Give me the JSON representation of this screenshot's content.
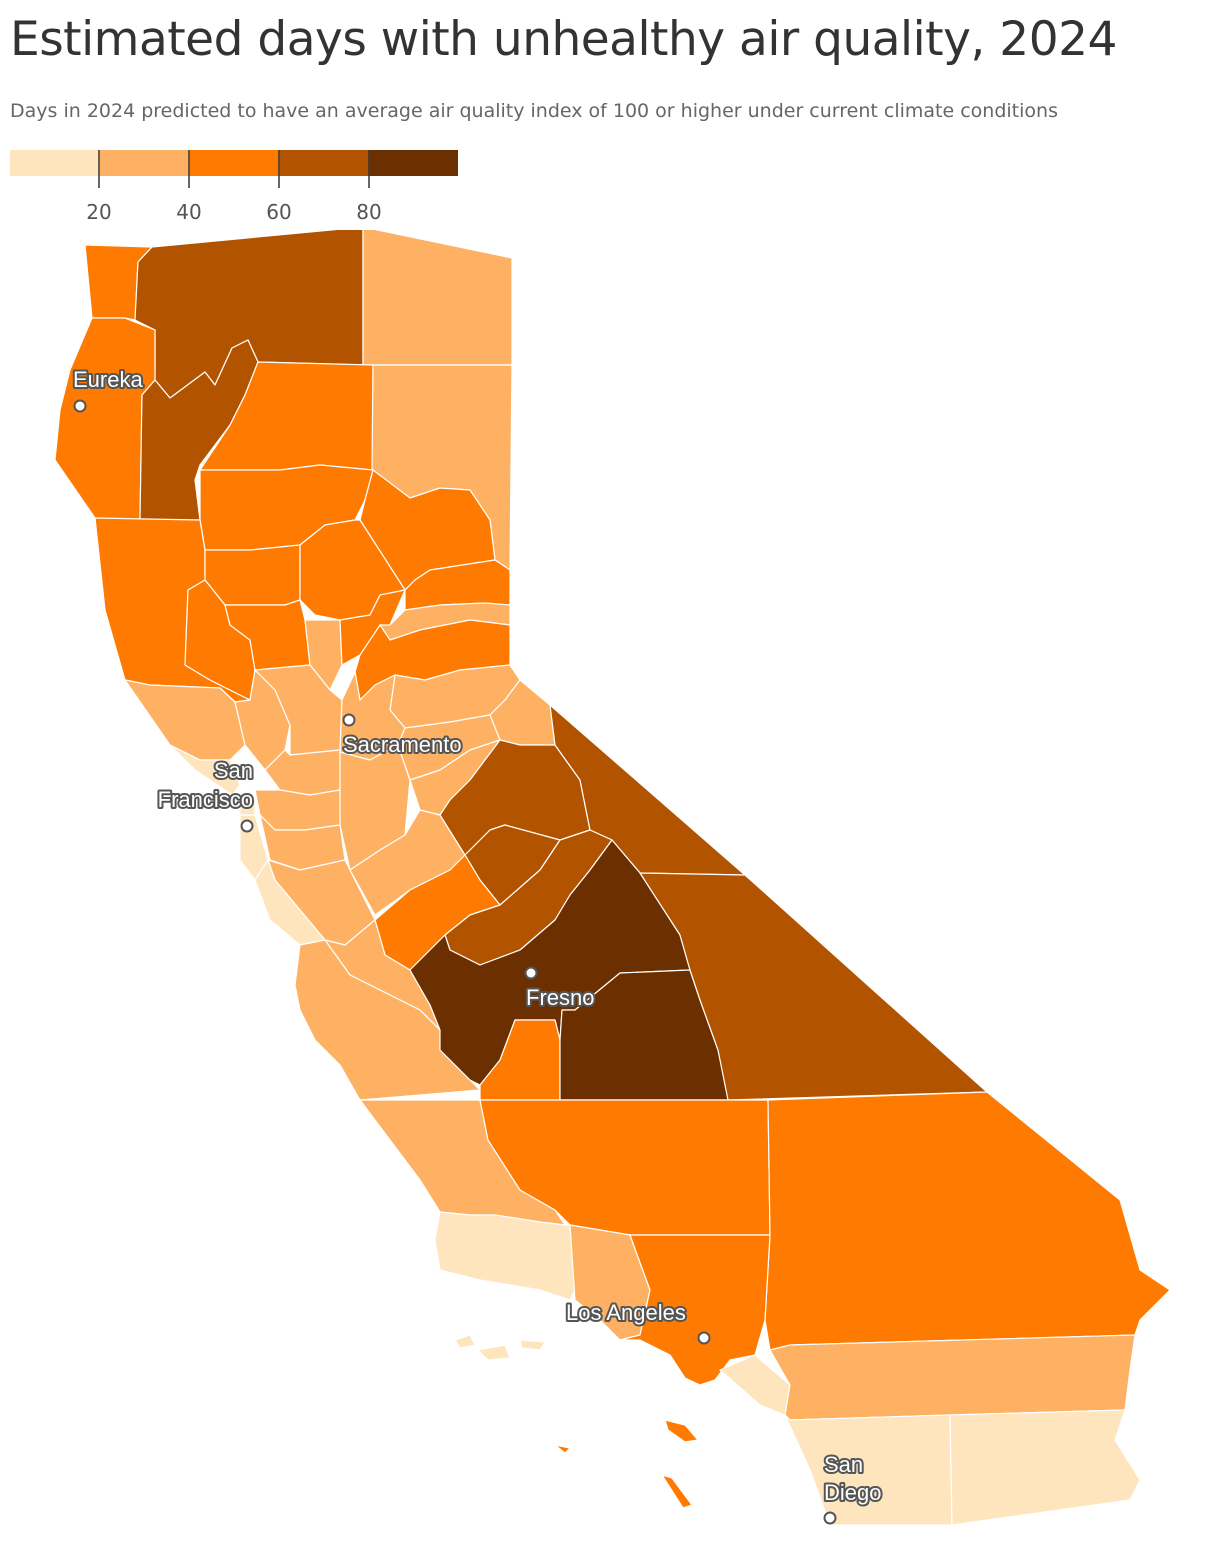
{
  "title": "Estimated days with unhealthy air quality, 2024",
  "subtitle": "Days in 2024 predicted to have an average air quality index of 100 or higher under current climate conditions",
  "legend": {
    "bins": [
      {
        "color": "#fee5bd"
      },
      {
        "color": "#feb162"
      },
      {
        "color": "#ff7a00"
      },
      {
        "color": "#b25300"
      },
      {
        "color": "#6b2f00"
      }
    ],
    "ticks": [
      "20",
      "40",
      "60",
      "80"
    ]
  },
  "colors": {
    "bin1": "#fee5bd",
    "bin2": "#feb162",
    "bin3": "#ff7a00",
    "bin4": "#b25300",
    "bin5": "#6b2f00"
  },
  "cities": {
    "eureka": "Eureka",
    "sacramento": "Sacramento",
    "san_francisco_1": "San",
    "san_francisco_2": "Francisco",
    "fresno": "Fresno",
    "los_angeles": "Los Angeles",
    "san_diego_1": "San",
    "san_diego_2": "Diego"
  }
}
